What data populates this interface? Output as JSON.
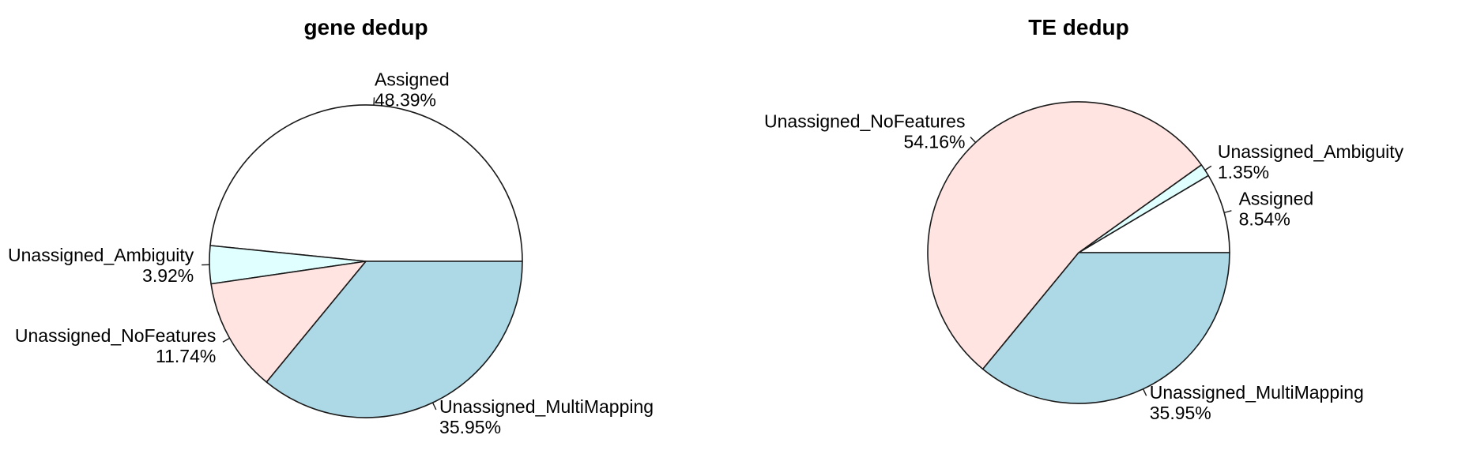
{
  "chart_data": [
    {
      "type": "pie",
      "title": "gene dedup",
      "slices": [
        {
          "label": "Assigned",
          "value_label": "48.39%",
          "value": 48.39,
          "color": "#ffffff"
        },
        {
          "label": "Unassigned_Ambiguity",
          "value_label": "3.92%",
          "value": 3.92,
          "color": "#e0ffff"
        },
        {
          "label": "Unassigned_NoFeatures",
          "value_label": "11.74%",
          "value": 11.74,
          "color": "#ffe4e1"
        },
        {
          "label": "Unassigned_MultiMapping",
          "value_label": "35.95%",
          "value": 35.95,
          "color": "#add8e6"
        }
      ]
    },
    {
      "type": "pie",
      "title": "TE dedup",
      "slices": [
        {
          "label": "Assigned",
          "value_label": "8.54%",
          "value": 8.54,
          "color": "#ffffff"
        },
        {
          "label": "Unassigned_Ambiguity",
          "value_label": "1.35%",
          "value": 1.35,
          "color": "#e0ffff"
        },
        {
          "label": "Unassigned_NoFeatures",
          "value_label": "54.16%",
          "value": 54.16,
          "color": "#ffe4e1"
        },
        {
          "label": "Unassigned_MultiMapping",
          "value_label": "35.95%",
          "value": 35.95,
          "color": "#add8e6"
        }
      ]
    }
  ]
}
